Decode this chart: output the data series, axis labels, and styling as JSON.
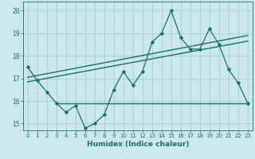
{
  "xlabel": "Humidex (Indice chaleur)",
  "xlim": [
    -0.5,
    23.5
  ],
  "ylim": [
    14.7,
    20.4
  ],
  "yticks": [
    15,
    16,
    17,
    18,
    19,
    20
  ],
  "xticks": [
    0,
    1,
    2,
    3,
    4,
    5,
    6,
    7,
    8,
    9,
    10,
    11,
    12,
    13,
    14,
    15,
    16,
    17,
    18,
    19,
    20,
    21,
    22,
    23
  ],
  "bg_color": "#cce8ec",
  "grid_color": "#a8cdd2",
  "line_color": "#1a6e6a",
  "main_data_x": [
    0,
    1,
    2,
    3,
    4,
    5,
    6,
    7,
    8,
    9,
    10,
    11,
    12,
    13,
    14,
    15,
    16,
    17,
    18,
    19,
    20,
    21,
    22,
    23
  ],
  "main_data_y": [
    17.5,
    16.9,
    16.4,
    15.9,
    15.5,
    15.8,
    14.8,
    15.0,
    15.4,
    16.5,
    17.3,
    16.7,
    17.3,
    18.6,
    19.0,
    20.0,
    18.8,
    18.3,
    18.3,
    19.2,
    18.5,
    17.4,
    16.8,
    15.9
  ],
  "trend1_x": [
    0,
    23
  ],
  "trend1_y": [
    16.85,
    18.65
  ],
  "trend2_x": [
    0,
    23
  ],
  "trend2_y": [
    17.05,
    18.9
  ],
  "hline_y": 15.9,
  "hline_x_start": 3,
  "hline_x_end": 23
}
